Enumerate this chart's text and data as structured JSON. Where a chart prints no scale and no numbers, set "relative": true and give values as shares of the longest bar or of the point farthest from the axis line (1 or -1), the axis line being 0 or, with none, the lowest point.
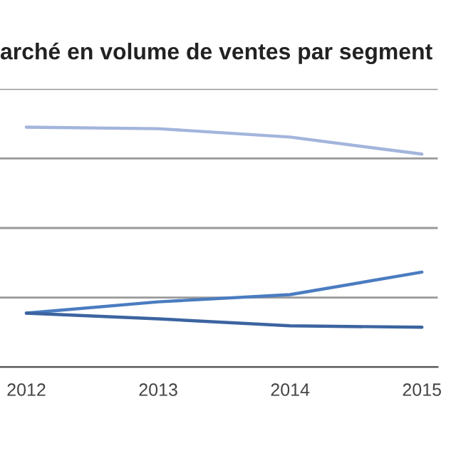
{
  "chart_data": {
    "type": "line",
    "title": "arché en volume de ventes par segment",
    "relative": true,
    "grid": "y",
    "legend": false,
    "categories": [
      "2012",
      "2013",
      "2014",
      "2015"
    ],
    "series": [
      {
        "color": "#a3b5dc",
        "values": [
          1,
          0.994,
          0.959,
          0.888
        ]
      },
      {
        "color": "#4a7cc0",
        "values": [
          0.225,
          0.272,
          0.302,
          0.396
        ]
      },
      {
        "color": "#3b64a0",
        "values": [
          0.225,
          0.201,
          0.172,
          0.166
        ]
      }
    ]
  }
}
